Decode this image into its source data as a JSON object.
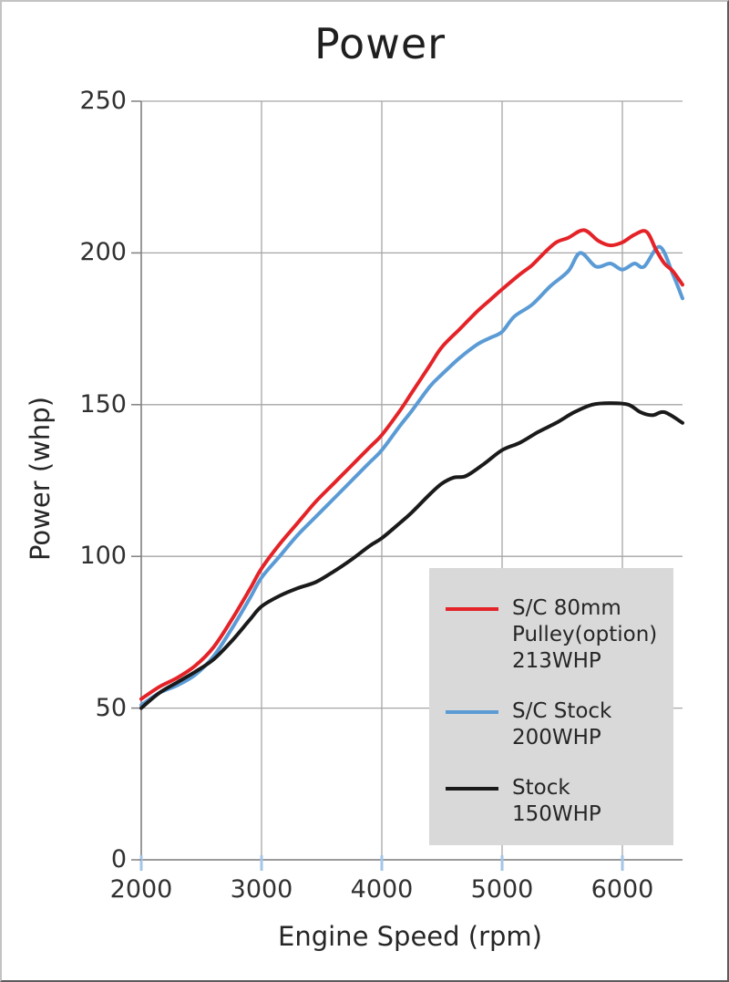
{
  "chart_data": {
    "type": "line",
    "title": "Power",
    "xlabel": "Engine Speed (rpm)",
    "ylabel": "Power (whp)",
    "xlim": [
      2000,
      6500
    ],
    "ylim": [
      0,
      250
    ],
    "x_ticks": [
      2000,
      3000,
      4000,
      5000,
      6000
    ],
    "y_ticks": [
      0,
      50,
      100,
      150,
      200,
      250
    ],
    "grid": true,
    "legend_position": "inside-lower-right",
    "colors": {
      "grid": "#a6a6a6",
      "axis": "#808080",
      "x_tick_mark": "#a3c6e8",
      "y_tick_mark": "#808080",
      "legend_bg": "#d9d9d9",
      "text": "#262626"
    },
    "series": [
      {
        "name": "S/C 80mm Pulley(option) 213WHP",
        "legend_label": "S/C 80mm\nPulley(option)\n213WHP",
        "color": "#e42328",
        "z": 3,
        "points": [
          [
            2000,
            53
          ],
          [
            2150,
            57
          ],
          [
            2300,
            60
          ],
          [
            2450,
            64
          ],
          [
            2600,
            70
          ],
          [
            2750,
            79
          ],
          [
            2900,
            89
          ],
          [
            3000,
            96
          ],
          [
            3150,
            104
          ],
          [
            3300,
            111
          ],
          [
            3450,
            118
          ],
          [
            3600,
            124
          ],
          [
            3750,
            130
          ],
          [
            3900,
            136
          ],
          [
            4000,
            140
          ],
          [
            4150,
            148
          ],
          [
            4250,
            154
          ],
          [
            4400,
            163
          ],
          [
            4500,
            169
          ],
          [
            4650,
            175
          ],
          [
            4800,
            181
          ],
          [
            4900,
            184.5
          ],
          [
            5000,
            188
          ],
          [
            5150,
            193
          ],
          [
            5250,
            196
          ],
          [
            5350,
            200
          ],
          [
            5450,
            203.5
          ],
          [
            5550,
            205
          ],
          [
            5680,
            207.5
          ],
          [
            5800,
            204
          ],
          [
            5900,
            202.5
          ],
          [
            6000,
            203.5
          ],
          [
            6100,
            206
          ],
          [
            6200,
            207
          ],
          [
            6280,
            201
          ],
          [
            6350,
            196.5
          ],
          [
            6420,
            194
          ],
          [
            6500,
            189.5
          ]
        ]
      },
      {
        "name": "S/C Stock 200WHP",
        "legend_label": "S/C Stock\n200WHP",
        "color": "#5b9bd5",
        "z": 1,
        "points": [
          [
            2000,
            51
          ],
          [
            2150,
            55
          ],
          [
            2300,
            57.5
          ],
          [
            2450,
            61
          ],
          [
            2600,
            67
          ],
          [
            2750,
            76
          ],
          [
            2900,
            86
          ],
          [
            3000,
            93
          ],
          [
            3150,
            100
          ],
          [
            3300,
            107
          ],
          [
            3450,
            113
          ],
          [
            3600,
            119
          ],
          [
            3750,
            125
          ],
          [
            3900,
            131
          ],
          [
            4000,
            135
          ],
          [
            4150,
            143
          ],
          [
            4250,
            148
          ],
          [
            4400,
            156
          ],
          [
            4500,
            160
          ],
          [
            4650,
            165.5
          ],
          [
            4800,
            170
          ],
          [
            4900,
            172
          ],
          [
            5000,
            174
          ],
          [
            5100,
            179
          ],
          [
            5250,
            183
          ],
          [
            5400,
            189
          ],
          [
            5550,
            194
          ],
          [
            5650,
            200
          ],
          [
            5780,
            195.5
          ],
          [
            5900,
            196.5
          ],
          [
            6000,
            194.5
          ],
          [
            6100,
            196.5
          ],
          [
            6180,
            195.5
          ],
          [
            6310,
            202
          ],
          [
            6420,
            193
          ],
          [
            6500,
            185
          ]
        ]
      },
      {
        "name": "Stock 150WHP",
        "legend_label": "Stock\n150WHP",
        "color": "#1a1a1a",
        "z": 2,
        "points": [
          [
            2000,
            50
          ],
          [
            2150,
            55
          ],
          [
            2300,
            58.5
          ],
          [
            2450,
            62
          ],
          [
            2600,
            66
          ],
          [
            2750,
            72
          ],
          [
            2900,
            79
          ],
          [
            3000,
            83.5
          ],
          [
            3150,
            87
          ],
          [
            3300,
            89.5
          ],
          [
            3450,
            91.5
          ],
          [
            3600,
            95
          ],
          [
            3750,
            99
          ],
          [
            3900,
            103.5
          ],
          [
            4000,
            106
          ],
          [
            4150,
            111
          ],
          [
            4250,
            114.5
          ],
          [
            4400,
            120.5
          ],
          [
            4500,
            124
          ],
          [
            4600,
            126
          ],
          [
            4700,
            126.5
          ],
          [
            4850,
            130.5
          ],
          [
            5000,
            135
          ],
          [
            5150,
            137.5
          ],
          [
            5300,
            141
          ],
          [
            5450,
            144
          ],
          [
            5600,
            147.5
          ],
          [
            5750,
            150
          ],
          [
            5900,
            150.5
          ],
          [
            6050,
            150
          ],
          [
            6150,
            147.5
          ],
          [
            6250,
            146.5
          ],
          [
            6350,
            147.5
          ],
          [
            6500,
            144
          ]
        ]
      }
    ]
  }
}
